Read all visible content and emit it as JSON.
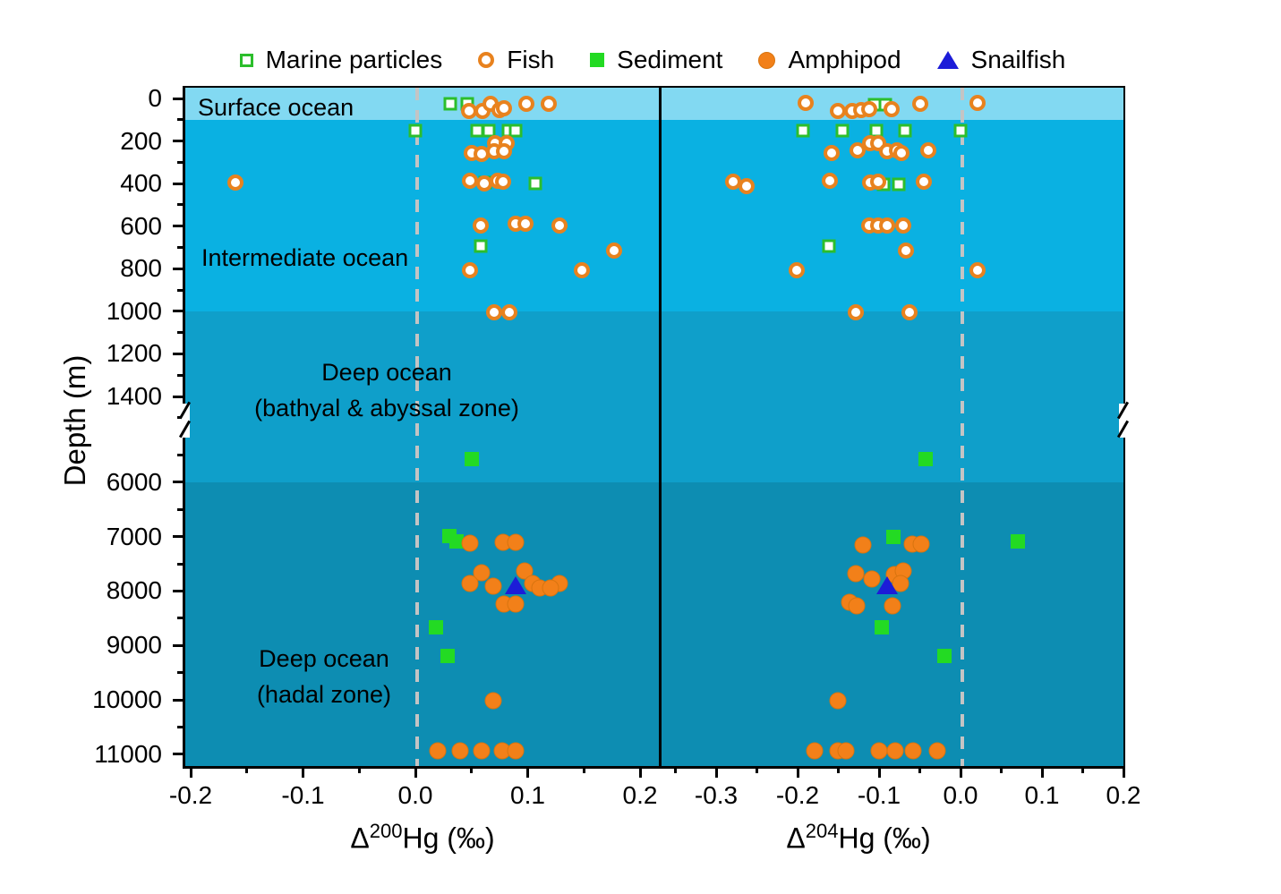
{
  "colors": {
    "surface_band": "#82d9f2",
    "intermediate_band": "#0ab1e2",
    "bathyal_band": "#0f9fca",
    "hadal_band": "#0d8db2",
    "green_open": "#2cbe2c",
    "green_fill": "#23da23",
    "orange": "#e8821e",
    "orange_fill": "#f28019",
    "blue": "#1c1cd8",
    "zero_line": "#c4c4c4"
  },
  "chart_data": {
    "type": "scatter",
    "ylabel": "Depth (m)",
    "legend_position": "top",
    "legend": [
      {
        "label": "Marine particles",
        "marker": "open-square"
      },
      {
        "label": "Fish",
        "marker": "open-circle"
      },
      {
        "label": "Sediment",
        "marker": "filled-square"
      },
      {
        "label": "Amphipod",
        "marker": "filled-circle"
      },
      {
        "label": "Snailfish",
        "marker": "filled-triangle"
      }
    ],
    "y_axis": {
      "ticks": [
        {
          "label": "0",
          "depth": 0
        },
        {
          "label": "200",
          "depth": 200
        },
        {
          "label": "400",
          "depth": 400
        },
        {
          "label": "600",
          "depth": 600
        },
        {
          "label": "800",
          "depth": 800
        },
        {
          "label": "1000",
          "depth": 1000
        },
        {
          "label": "1200",
          "depth": 1200
        },
        {
          "label": "1400",
          "depth": 1400
        },
        {
          "label": "6000",
          "depth": 6000
        },
        {
          "label": "7000",
          "depth": 7000
        },
        {
          "label": "8000",
          "depth": 8000
        },
        {
          "label": "9000",
          "depth": 9000
        },
        {
          "label": "10000",
          "depth": 10000
        },
        {
          "label": "11000",
          "depth": 11000
        }
      ],
      "minor": [
        100,
        300,
        500,
        700,
        900,
        1100,
        1300,
        1500,
        5500,
        6500,
        7500,
        8500,
        9500,
        10500
      ],
      "break_between": [
        1500,
        5000
      ]
    },
    "zones": [
      {
        "label_lines": [
          "Surface ocean"
        ],
        "depth_range": [
          0,
          100
        ],
        "color": "#82d9f2"
      },
      {
        "label_lines": [
          "Intermediate ocean"
        ],
        "depth_range": [
          100,
          1000
        ],
        "color": "#0ab1e2"
      },
      {
        "label_lines": [
          "Deep ocean",
          "(bathyal & abyssal zone)"
        ],
        "depth_range": [
          1000,
          6000
        ],
        "color": "#0f9fca"
      },
      {
        "label_lines": [
          "Deep ocean",
          "(hadal zone)"
        ],
        "depth_range": [
          6000,
          11200
        ],
        "color": "#0d8db2"
      }
    ],
    "zero_reference_line": {
      "value": 0,
      "style": "dashed",
      "color": "#c4c4c4"
    },
    "panels": [
      {
        "xlabel": "Δ200Hg (‰)",
        "xlabel_parts": {
          "pre": "Δ",
          "sup": "200",
          "post": "Hg (‰)"
        },
        "xlim": [
          -0.21,
          0.215
        ],
        "ticks": [
          {
            "label": "-0.2",
            "value": -0.2
          },
          {
            "label": "-0.1",
            "value": -0.1
          },
          {
            "label": "0.0",
            "value": 0.0
          },
          {
            "label": "0.1",
            "value": 0.1
          },
          {
            "label": "0.2",
            "value": 0.2
          }
        ],
        "minor": [
          -0.15,
          -0.05,
          0.05,
          0.15
        ],
        "series": [
          {
            "name": "Marine particles",
            "marker": "open-square",
            "points": [
              [
                0.031,
                25
              ],
              [
                0.046,
                25
              ],
              [
                0.0,
                150
              ],
              [
                0.055,
                150
              ],
              [
                0.065,
                150
              ],
              [
                0.083,
                150
              ],
              [
                0.089,
                150
              ],
              [
                0.062,
                395
              ],
              [
                0.107,
                400
              ],
              [
                0.058,
                695
              ]
            ]
          },
          {
            "name": "Fish",
            "marker": "open-circle",
            "points": [
              [
                0.048,
                60
              ],
              [
                0.06,
                60
              ],
              [
                0.067,
                25
              ],
              [
                0.075,
                55
              ],
              [
                0.079,
                45
              ],
              [
                0.099,
                25
              ],
              [
                0.119,
                25
              ],
              [
                0.071,
                210
              ],
              [
                0.081,
                210
              ],
              [
                0.05,
                255
              ],
              [
                0.059,
                260
              ],
              [
                0.07,
                250
              ],
              [
                0.079,
                250
              ],
              [
                -0.16,
                395
              ],
              [
                0.049,
                385
              ],
              [
                0.061,
                400
              ],
              [
                0.073,
                385
              ],
              [
                0.078,
                390
              ],
              [
                0.058,
                595
              ],
              [
                0.089,
                590
              ],
              [
                0.098,
                590
              ],
              [
                0.128,
                595
              ],
              [
                0.177,
                715
              ],
              [
                0.049,
                805
              ],
              [
                0.148,
                805
              ],
              [
                0.07,
                1005
              ],
              [
                0.084,
                1005
              ]
            ]
          },
          {
            "name": "Sediment",
            "marker": "filled-square",
            "points": [
              [
                0.05,
                5580
              ],
              [
                0.03,
                6990
              ],
              [
                0.037,
                7090
              ],
              [
                0.018,
                8660
              ],
              [
                0.029,
                9190
              ]
            ]
          },
          {
            "name": "Amphipod",
            "marker": "filled-circle",
            "points": [
              [
                0.049,
                7120
              ],
              [
                0.078,
                7110
              ],
              [
                0.089,
                7110
              ],
              [
                0.097,
                7630
              ],
              [
                0.059,
                7660
              ],
              [
                0.049,
                7860
              ],
              [
                0.104,
                7870
              ],
              [
                0.128,
                7860
              ],
              [
                0.069,
                7910
              ],
              [
                0.111,
                7950
              ],
              [
                0.12,
                7950
              ],
              [
                0.079,
                8240
              ],
              [
                0.089,
                8240
              ],
              [
                0.069,
                10010
              ],
              [
                0.02,
                10940
              ],
              [
                0.04,
                10940
              ],
              [
                0.059,
                10940
              ],
              [
                0.077,
                10930
              ],
              [
                0.089,
                10930
              ]
            ]
          },
          {
            "name": "Snailfish",
            "marker": "filled-triangle",
            "points": [
              [
                0.089,
                7890
              ]
            ]
          }
        ]
      },
      {
        "xlabel": "Δ204Hg (‰)",
        "xlabel_parts": {
          "pre": "Δ",
          "sup": "204",
          "post": "Hg (‰)"
        },
        "xlim": [
          -0.37,
          0.21
        ],
        "ticks": [
          {
            "label": "-0.3",
            "value": -0.3
          },
          {
            "label": "-0.2",
            "value": -0.2
          },
          {
            "label": "-0.1",
            "value": -0.1
          },
          {
            "label": "0.0",
            "value": 0.0
          },
          {
            "label": "0.1",
            "value": 0.1
          },
          {
            "label": "0.2",
            "value": 0.2
          }
        ],
        "minor": [
          -0.35,
          -0.25,
          -0.15,
          -0.05,
          0.05,
          0.15
        ],
        "series": [
          {
            "name": "Marine particles",
            "marker": "open-square",
            "points": [
              [
                -0.105,
                30
              ],
              [
                -0.092,
                30
              ],
              [
                -0.193,
                150
              ],
              [
                -0.145,
                150
              ],
              [
                -0.103,
                150
              ],
              [
                -0.068,
                150
              ],
              [
                0.0,
                150
              ],
              [
                -0.095,
                405
              ],
              [
                -0.076,
                405
              ],
              [
                -0.162,
                695
              ]
            ]
          },
          {
            "name": "Fish",
            "marker": "open-circle",
            "points": [
              [
                -0.19,
                20
              ],
              [
                -0.151,
                60
              ],
              [
                -0.133,
                60
              ],
              [
                -0.122,
                55
              ],
              [
                -0.112,
                50
              ],
              [
                -0.085,
                50
              ],
              [
                -0.049,
                25
              ],
              [
                0.021,
                20
              ],
              [
                -0.111,
                210
              ],
              [
                -0.101,
                210
              ],
              [
                -0.158,
                255
              ],
              [
                -0.126,
                245
              ],
              [
                -0.09,
                250
              ],
              [
                -0.078,
                245
              ],
              [
                -0.073,
                255
              ],
              [
                -0.04,
                245
              ],
              [
                -0.279,
                390
              ],
              [
                -0.263,
                410
              ],
              [
                -0.16,
                385
              ],
              [
                -0.111,
                395
              ],
              [
                -0.101,
                390
              ],
              [
                -0.045,
                390
              ],
              [
                -0.112,
                595
              ],
              [
                -0.101,
                595
              ],
              [
                -0.09,
                595
              ],
              [
                -0.07,
                595
              ],
              [
                -0.067,
                715
              ],
              [
                -0.201,
                805
              ],
              [
                0.021,
                805
              ],
              [
                -0.129,
                1005
              ],
              [
                -0.063,
                1005
              ]
            ]
          },
          {
            "name": "Sediment",
            "marker": "filled-square",
            "points": [
              [
                -0.043,
                5580
              ],
              [
                -0.082,
                7000
              ],
              [
                0.07,
                7090
              ],
              [
                -0.097,
                8660
              ],
              [
                -0.02,
                9190
              ]
            ]
          },
          {
            "name": "Amphipod",
            "marker": "filled-circle",
            "points": [
              [
                -0.12,
                7150
              ],
              [
                -0.059,
                7130
              ],
              [
                -0.048,
                7140
              ],
              [
                -0.129,
                7680
              ],
              [
                -0.109,
                7780
              ],
              [
                -0.081,
                7700
              ],
              [
                -0.07,
                7630
              ],
              [
                -0.074,
                7860
              ],
              [
                -0.136,
                8200
              ],
              [
                -0.127,
                8270
              ],
              [
                -0.084,
                8270
              ],
              [
                -0.151,
                10010
              ],
              [
                -0.179,
                10940
              ],
              [
                -0.151,
                10940
              ],
              [
                -0.141,
                10940
              ],
              [
                -0.1,
                10930
              ],
              [
                -0.08,
                10930
              ],
              [
                -0.058,
                10930
              ],
              [
                -0.029,
                10940
              ]
            ]
          },
          {
            "name": "Snailfish",
            "marker": "filled-triangle",
            "points": [
              [
                -0.09,
                7890
              ]
            ]
          }
        ]
      }
    ]
  }
}
